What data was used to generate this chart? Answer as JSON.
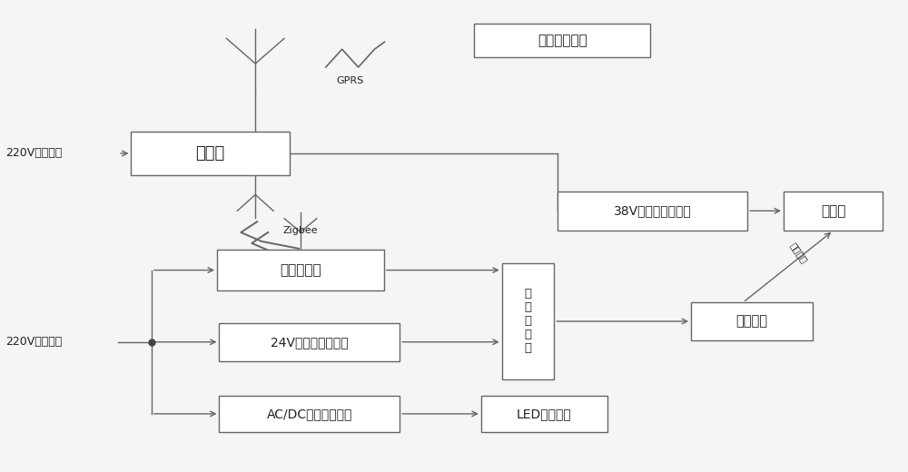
{
  "bg_color": "#f5f5f5",
  "line_color": "#666666",
  "box_color": "#ffffff",
  "box_edge": "#666666",
  "text_color": "#222222",
  "remote_label": "远程控制平台",
  "coord_label": "协调器",
  "terminal_label": "终端控制器",
  "adapter24_label": "24V直流电源适配器",
  "acdc_label": "AC/DC恒流电源模块",
  "emrelay_label": "电\n磁\n继\n电\n器",
  "adapter38_label": "38V直流电源适配器",
  "projector_label": "投影灯",
  "motor_label": "电动推杆",
  "led_label": "LED照明模块",
  "input1_label": "220V交流输入",
  "input2_label": "220V交流输入",
  "gprs_label": "GPRS",
  "zigbee_label": "Zigbee",
  "mechanical_label": "机械相连"
}
